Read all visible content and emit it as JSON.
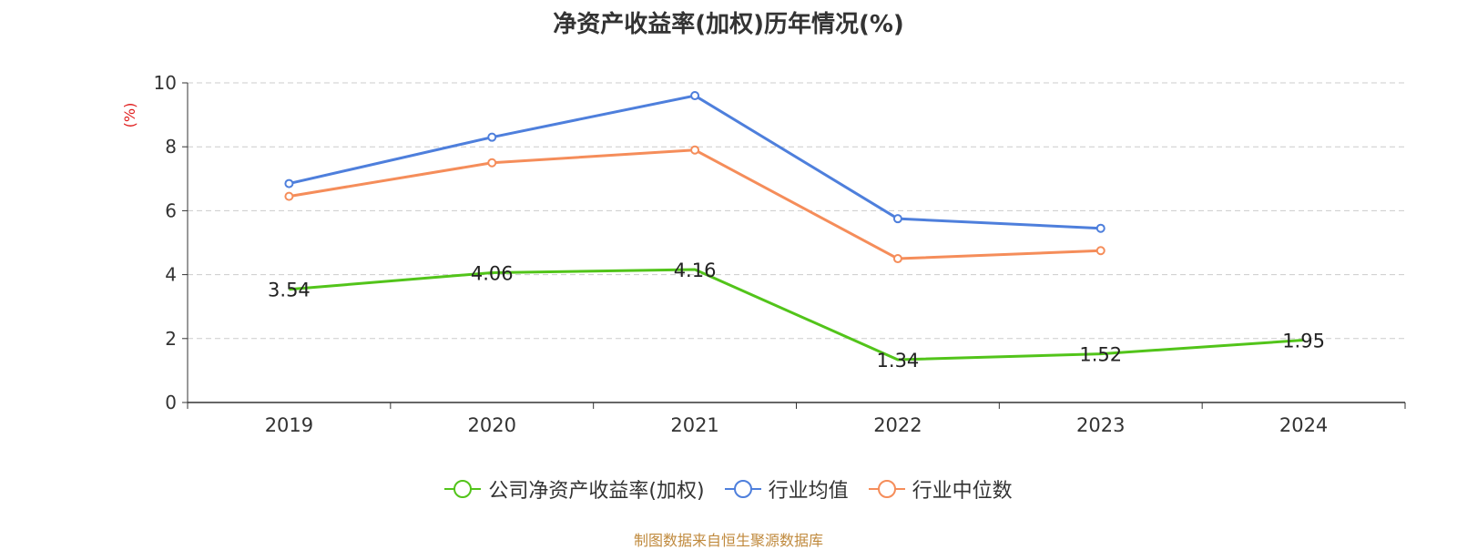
{
  "chart_data": {
    "type": "line",
    "title": "净资产收益率(加权)历年情况(%)",
    "ylabel": "(%)",
    "xlabel": "",
    "categories": [
      "2019",
      "2020",
      "2021",
      "2022",
      "2023",
      "2024"
    ],
    "ylim": [
      0,
      10
    ],
    "yticks": [
      "0",
      "2",
      "4",
      "6",
      "8",
      "10"
    ],
    "grid": true,
    "legend_position": "bottom-center",
    "series": [
      {
        "name": "公司净资产收益率(加权)",
        "color": "#52c41a",
        "values": [
          3.54,
          4.06,
          4.16,
          1.34,
          1.52,
          1.95
        ],
        "labels": [
          "3.54",
          "4.06",
          "4.16",
          "1.34",
          "1.52",
          "1.95"
        ]
      },
      {
        "name": "行业均值",
        "color": "#4e7fdc",
        "values": [
          6.85,
          8.3,
          9.6,
          5.75,
          5.45,
          null
        ]
      },
      {
        "name": "行业中位数",
        "color": "#f58d5a",
        "values": [
          6.45,
          7.5,
          7.9,
          4.5,
          4.75,
          null
        ]
      }
    ]
  },
  "source": "制图数据来自恒生聚源数据库"
}
